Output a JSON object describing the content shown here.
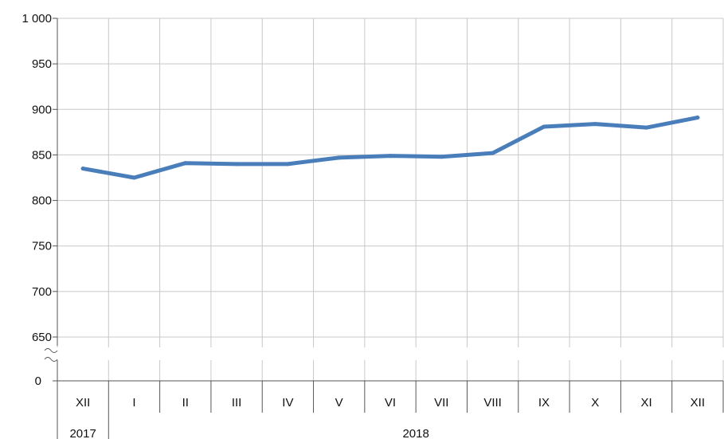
{
  "chart_data": {
    "type": "line",
    "title": "",
    "xlabel": "",
    "ylabel": "",
    "categories": [
      "XII",
      "I",
      "II",
      "III",
      "IV",
      "V",
      "VI",
      "VII",
      "VIII",
      "IX",
      "X",
      "XI",
      "XII"
    ],
    "year_groups": [
      {
        "label": "2017",
        "from": 0,
        "to": 0
      },
      {
        "label": "2018",
        "from": 1,
        "to": 12
      }
    ],
    "series": [
      {
        "values": [
          835,
          825,
          841,
          840,
          840,
          847,
          849,
          848,
          852,
          881,
          884,
          880,
          891
        ]
      }
    ],
    "ylim": [
      650,
      1000
    ],
    "yticks": [
      650,
      700,
      750,
      800,
      850,
      900,
      950,
      1000
    ],
    "ytick_labels": [
      "650",
      "700",
      "750",
      "800",
      "850",
      "900",
      "950",
      "1 000"
    ],
    "axis_break": true,
    "zero_label": "0",
    "grid": true,
    "line_color": "#4a7ebb"
  }
}
